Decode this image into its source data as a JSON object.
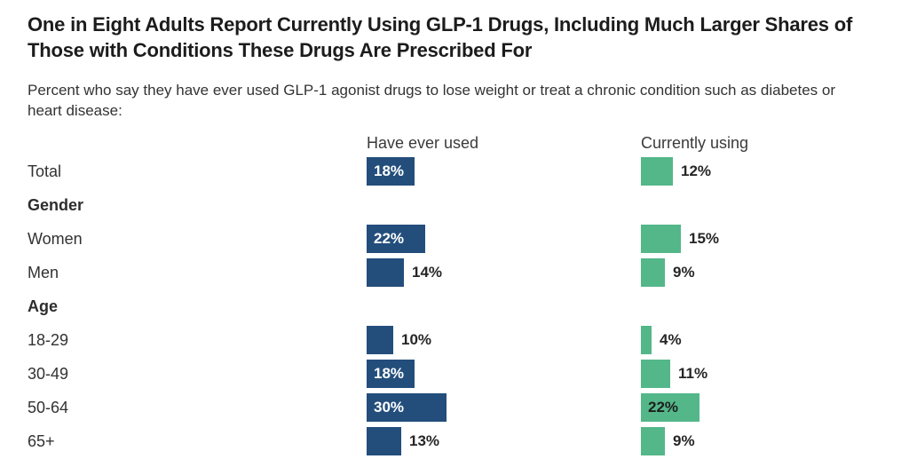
{
  "chart_data": {
    "type": "bar",
    "orientation": "horizontal",
    "title": "One in Eight Adults Report Currently Using GLP-1 Drugs, Including Much Larger Shares of Those with Conditions These Drugs Are Prescribed For",
    "subtitle": "Percent who say they have ever used GLP-1 agonist drugs to lose weight or treat a chronic condition such as diabetes or heart disease:",
    "xlim": [
      0,
      100
    ],
    "grid": false,
    "legend_position": "column-headers",
    "colors": {
      "have_ever_used": "#234e7c",
      "currently_using": "#53b789"
    },
    "columns": [
      {
        "key": "ever",
        "label": "Have ever used",
        "color": "#234e7c"
      },
      {
        "key": "current",
        "label": "Currently using",
        "color": "#53b789"
      }
    ],
    "rows": [
      {
        "type": "data",
        "label": "Total",
        "values": [
          {
            "value": 18,
            "display": "18%",
            "inside": true
          },
          {
            "value": 12,
            "display": "12%",
            "inside": false
          }
        ]
      },
      {
        "type": "section",
        "label": "Gender"
      },
      {
        "type": "data",
        "label": "Women",
        "values": [
          {
            "value": 22,
            "display": "22%",
            "inside": true
          },
          {
            "value": 15,
            "display": "15%",
            "inside": false
          }
        ]
      },
      {
        "type": "data",
        "label": "Men",
        "values": [
          {
            "value": 14,
            "display": "14%",
            "inside": false
          },
          {
            "value": 9,
            "display": "9%",
            "inside": false
          }
        ]
      },
      {
        "type": "section",
        "label": "Age"
      },
      {
        "type": "data",
        "label": "18-29",
        "values": [
          {
            "value": 10,
            "display": "10%",
            "inside": false
          },
          {
            "value": 4,
            "display": "4%",
            "inside": false
          }
        ]
      },
      {
        "type": "data",
        "label": "30-49",
        "values": [
          {
            "value": 18,
            "display": "18%",
            "inside": true
          },
          {
            "value": 11,
            "display": "11%",
            "inside": false
          }
        ]
      },
      {
        "type": "data",
        "label": "50-64",
        "values": [
          {
            "value": 30,
            "display": "30%",
            "inside": true
          },
          {
            "value": 22,
            "display": "22%",
            "inside": true
          }
        ]
      },
      {
        "type": "data",
        "label": "65+",
        "values": [
          {
            "value": 13,
            "display": "13%",
            "inside": false
          },
          {
            "value": 9,
            "display": "9%",
            "inside": false
          }
        ]
      }
    ]
  }
}
